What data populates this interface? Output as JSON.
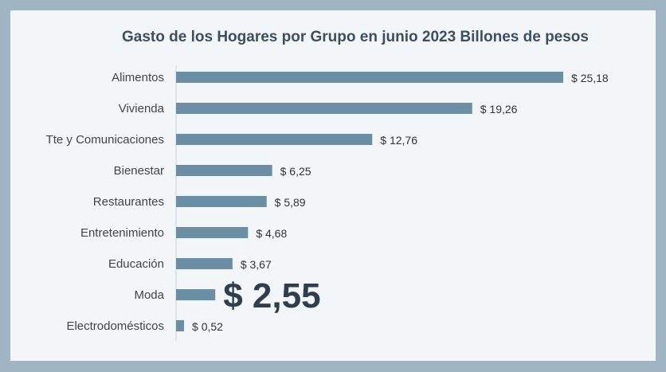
{
  "chart_data": {
    "type": "bar",
    "orientation": "horizontal",
    "title": "Gasto  de los Hogares por Grupo en junio 2023 Billones de pesos",
    "categories": [
      "Alimentos",
      "Vivienda",
      "Tte y Comunicaciones",
      "Bienestar",
      "Restaurantes",
      "Entretenimiento",
      "Educación",
      "Moda",
      "Electrodomésticos"
    ],
    "values": [
      25.18,
      19.26,
      12.76,
      6.25,
      5.89,
      4.68,
      3.67,
      2.55,
      0.52
    ],
    "labels": [
      "$ 25,18",
      "$ 19,26",
      "$ 12,76",
      "$ 6,25",
      "$ 5,89",
      "$ 4,68",
      "$ 3,67",
      "$ 2,55",
      "$ 0,52"
    ],
    "highlighted": "Moda",
    "bar_color": "#6a8ea4",
    "grid": false,
    "legend": "none"
  }
}
